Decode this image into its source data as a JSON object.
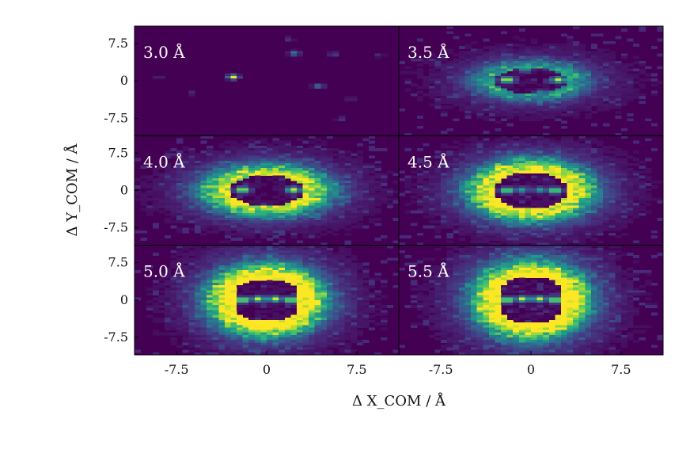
{
  "chart_data": {
    "type": "heatmap",
    "xlabel": "Δ X_COM / Å",
    "ylabel": "Δ Y_COM / Å",
    "xlim": [
      -11,
      11
    ],
    "ylim": [
      -11,
      11
    ],
    "x_ticks": [
      "-7.5",
      "0",
      "7.5"
    ],
    "y_ticks": [
      "7.5",
      "0",
      "-7.5"
    ],
    "grid": false,
    "colormap": {
      "name": "viridis",
      "stops": [
        "#440154",
        "#482878",
        "#3e4989",
        "#31688e",
        "#26828e",
        "#1f9e89",
        "#35b779",
        "#6ece58",
        "#b5de2b",
        "#fde725"
      ]
    },
    "panels": [
      {
        "label": "3.0 Å",
        "distance": 3.0,
        "hotspots": [
          {
            "x": -2.8,
            "y": 0.8,
            "intensity": 1.0
          },
          {
            "x": 2.3,
            "y": 5.6,
            "intensity": 0.45
          },
          {
            "x": 4.3,
            "y": -1.0,
            "intensity": 0.4
          },
          {
            "x": 5.6,
            "y": 5.4,
            "intensity": 0.2
          },
          {
            "x": 1.8,
            "y": 8.4,
            "intensity": 0.15
          },
          {
            "x": 6.2,
            "y": -7.6,
            "intensity": 0.15
          },
          {
            "x": -6.3,
            "y": -2.4,
            "intensity": 0.12
          },
          {
            "x": 9.3,
            "y": 5.2,
            "intensity": 0.12
          },
          {
            "x": 7.0,
            "y": -3.6,
            "intensity": 0.1
          },
          {
            "x": -9.0,
            "y": 0.8,
            "intensity": 0.1
          }
        ]
      },
      {
        "label": "3.5 Å",
        "distance": 3.5,
        "ring": {
          "rx": 3.2,
          "ry": 2.6,
          "pinch": 0.0,
          "width": 1.1,
          "intensity": 0.4
        },
        "hotspots": [
          {
            "x": -2.0,
            "y": 0.2,
            "intensity": 1.0
          },
          {
            "x": 2.3,
            "y": 0.2,
            "intensity": 0.95
          },
          {
            "x": -0.5,
            "y": 2.3,
            "intensity": 0.5
          },
          {
            "x": 0.9,
            "y": -2.4,
            "intensity": 0.45
          }
        ]
      },
      {
        "label": "4.0 Å",
        "distance": 4.0,
        "ring": {
          "rx": 3.2,
          "ry": 3.0,
          "pinch": 0.2,
          "width": 1.4,
          "intensity": 0.7
        },
        "hotspots": [
          {
            "x": -2.0,
            "y": 0.1,
            "intensity": 1.0
          },
          {
            "x": 2.2,
            "y": 0.1,
            "intensity": 1.0
          }
        ]
      },
      {
        "label": "4.5 Å",
        "distance": 4.5,
        "ring": {
          "rx": 3.0,
          "ry": 3.5,
          "pinch": 0.4,
          "width": 1.6,
          "intensity": 0.8
        },
        "hotspots": [
          {
            "x": -2.0,
            "y": 0.0,
            "intensity": 0.95
          },
          {
            "x": 2.0,
            "y": 0.0,
            "intensity": 0.95
          },
          {
            "x": -0.8,
            "y": 0.1,
            "intensity": 0.6
          },
          {
            "x": 0.8,
            "y": 0.1,
            "intensity": 0.6
          }
        ]
      },
      {
        "label": "5.0 Å",
        "distance": 5.0,
        "ring": {
          "rx": 2.8,
          "ry": 4.1,
          "pinch": 0.6,
          "width": 1.8,
          "intensity": 0.9
        },
        "hotspots": [
          {
            "x": -2.0,
            "y": 0.0,
            "intensity": 1.0
          },
          {
            "x": -0.7,
            "y": 0.2,
            "intensity": 0.95
          },
          {
            "x": 0.7,
            "y": 0.2,
            "intensity": 0.95
          },
          {
            "x": 2.0,
            "y": 0.0,
            "intensity": 1.0
          }
        ]
      },
      {
        "label": "5.5 Å",
        "distance": 5.5,
        "ring": {
          "rx": 2.8,
          "ry": 4.5,
          "pinch": 0.7,
          "width": 1.9,
          "intensity": 0.9
        },
        "hotspots": [
          {
            "x": -2.0,
            "y": 0.0,
            "intensity": 1.0
          },
          {
            "x": -0.7,
            "y": 0.2,
            "intensity": 0.95
          },
          {
            "x": 0.7,
            "y": 0.2,
            "intensity": 0.95
          },
          {
            "x": 2.0,
            "y": 0.0,
            "intensity": 1.0
          }
        ]
      }
    ]
  }
}
